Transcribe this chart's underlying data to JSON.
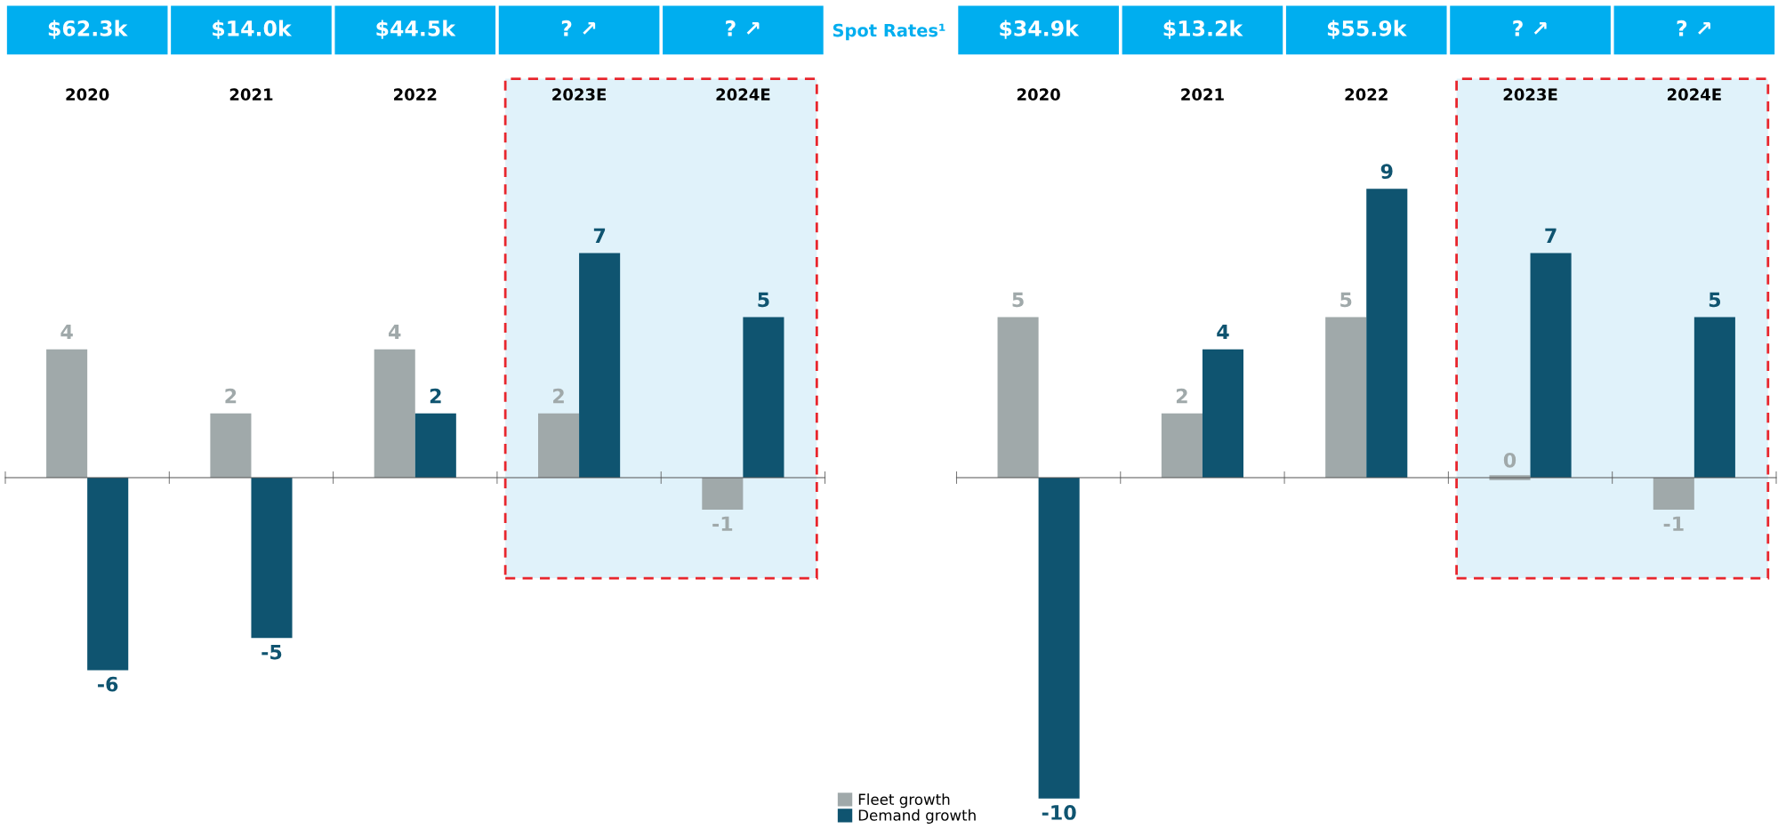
{
  "chart_data": [
    {
      "type": "bar",
      "title": "Spot Rates¹",
      "categories": [
        "2020",
        "2021",
        "2022",
        "2023E",
        "2024E"
      ],
      "annotations": [
        "$62.3k",
        "$14.0k",
        "$44.5k",
        "? ↗",
        "? ↗"
      ],
      "series": [
        {
          "name": "Fleet growth",
          "color": "#a0a9aa",
          "values": [
            4,
            2,
            4,
            2,
            -1
          ]
        },
        {
          "name": "Demand growth",
          "color": "#0f5470",
          "values": [
            -6,
            -5,
            2,
            7,
            5
          ]
        }
      ],
      "bands": [
        {
          "axis": "x",
          "from": "2023E",
          "to": "2024E",
          "color": "#e0f2fa"
        }
      ],
      "data_labels": true,
      "legend": "bottom right"
    },
    {
      "type": "bar",
      "categories": [
        "2020",
        "2021",
        "2022",
        "2023E",
        "2024E"
      ],
      "annotations": [
        "$34.9k",
        "$13.2k",
        "$55.9k",
        "? ↗",
        "? ↗"
      ],
      "series": [
        {
          "color": "#a0a9aa",
          "values": [
            5,
            2,
            5,
            0,
            -1
          ]
        },
        {
          "color": "#0f5470",
          "values": [
            -10,
            4,
            9,
            7,
            5
          ]
        }
      ],
      "bands": [
        {
          "axis": "x",
          "from": "2023E",
          "to": "2024E",
          "color": "#e0f2fa"
        }
      ],
      "data_labels": true
    }
  ]
}
